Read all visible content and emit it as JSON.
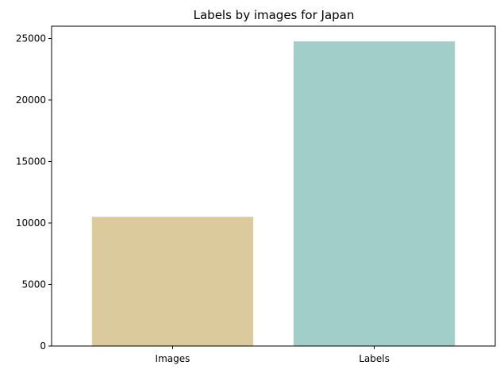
{
  "chart_data": {
    "type": "bar",
    "title": "Labels by images for Japan",
    "xlabel": "",
    "ylabel": "",
    "categories": [
      "Images",
      "Labels"
    ],
    "values": [
      10500,
      24750
    ],
    "colors": [
      "#dbca9c",
      "#a1cec9"
    ],
    "ylim": [
      0,
      25987
    ],
    "yticks": [
      0,
      5000,
      10000,
      15000,
      20000,
      25000
    ],
    "ytick_labels": [
      "0",
      "5000",
      "10000",
      "15000",
      "20000",
      "25000"
    ],
    "grid": false,
    "legend": "none"
  }
}
